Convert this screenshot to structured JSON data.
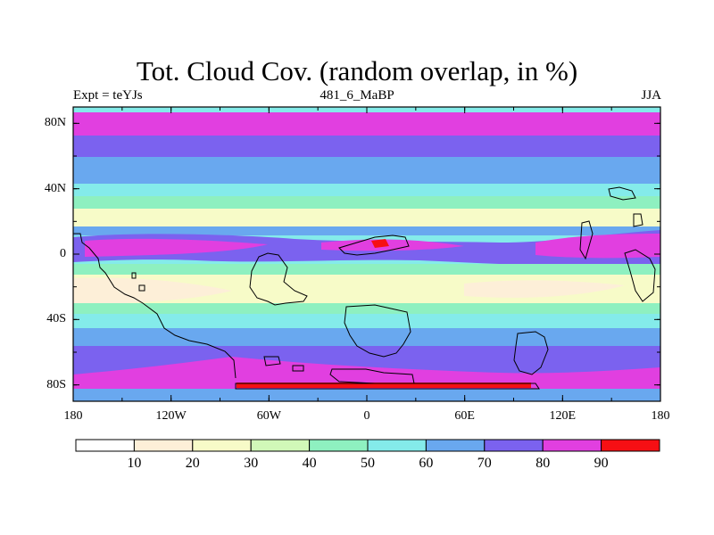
{
  "title": "Tot. Cloud Cov. (random overlap, in %)",
  "left_subtitle": "Expt = teYJs",
  "center_subtitle": "481_6_MaBP",
  "right_subtitle": "JJA",
  "y_ticks": [
    "80N",
    "40N",
    "0",
    "40S",
    "80S"
  ],
  "x_ticks": [
    "180",
    "120W",
    "60W",
    "0",
    "60E",
    "120E",
    "180"
  ],
  "colorbar": {
    "labels": [
      "10",
      "20",
      "30",
      "40",
      "50",
      "60",
      "70",
      "80",
      "90"
    ],
    "colors": [
      "#ffffff",
      "#fdefd8",
      "#f7fbc8",
      "#d1f8b8",
      "#8ef0c0",
      "#84ebea",
      "#69a8ef",
      "#7b62ef",
      "#e13fe0",
      "#f60f14"
    ]
  },
  "colors": {
    "band_polar_north": "#e13fe0",
    "band_subpolar": "#7b62ef",
    "band_midlat": "#69a8ef",
    "band_subtropic": "#84ebea",
    "band_dry": "#f7fbc8",
    "band_driest": "#fdefd8",
    "band_itcz": "#e13fe0",
    "max_cloud": "#f60f14"
  },
  "map": {
    "lat_range": [
      -90,
      90
    ],
    "lon_range": [
      -180,
      180
    ]
  }
}
